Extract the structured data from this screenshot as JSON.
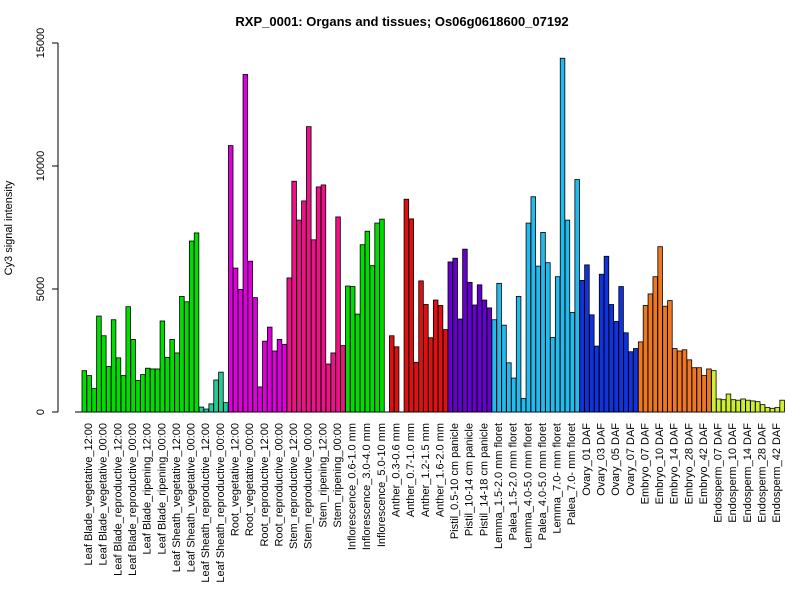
{
  "chart_data": {
    "type": "bar",
    "title": "RXP_0001: Organs and tissues; Os06g0618600_07192",
    "xlabel": "",
    "ylabel": "Cy3 signal intensity",
    "ylim": [
      0,
      15000
    ],
    "yticks": [
      0,
      5000,
      10000,
      15000
    ],
    "grid": false,
    "legend": "none",
    "groups": [
      {
        "label": "Leaf Blade_vegetative_12:00",
        "color": "#00dd00",
        "values": [
          1680,
          1480,
          950
        ]
      },
      {
        "label": "Leaf Blade_vegetative_00:00",
        "color": "#00dd00",
        "values": [
          3900,
          3100,
          1850
        ]
      },
      {
        "label": "Leaf Blade_reproductive_12:00",
        "color": "#00dd00",
        "values": [
          3750,
          2200,
          1480
        ]
      },
      {
        "label": "Leaf Blade_reproductive_00:00",
        "color": "#00dd00",
        "values": [
          4280,
          2950,
          1280
        ]
      },
      {
        "label": "Leaf Blade_ripening_12:00",
        "color": "#00dd00",
        "values": [
          1520,
          1780,
          1750
        ]
      },
      {
        "label": "Leaf Blade_ripening_00:00",
        "color": "#00dd00",
        "values": [
          1750,
          3700,
          2220
        ]
      },
      {
        "label": "Leaf Sheath_vegetative_12:00",
        "color": "#00dd00",
        "values": [
          2950,
          2400,
          4700
        ]
      },
      {
        "label": "Leaf Sheath_vegetative_00:00",
        "color": "#00dd00",
        "values": [
          4480,
          6950,
          7280
        ]
      },
      {
        "label": "Leaf Sheath_reproductive_12:00",
        "color": "#22cc99",
        "values": [
          200,
          120,
          330
        ]
      },
      {
        "label": "Leaf Sheath_reproductive_00:00",
        "color": "#22cc99",
        "values": [
          1300,
          1620,
          380
        ]
      },
      {
        "label": "Root_vegetative_12:00",
        "color": "#dd00dd",
        "values": [
          10830,
          5850,
          4980
        ]
      },
      {
        "label": "Root_vegetative_00:00",
        "color": "#dd00dd",
        "values": [
          13720,
          6130,
          4650
        ]
      },
      {
        "label": "Root_reproductive_12:00",
        "color": "#dd00dd",
        "values": [
          1020,
          2880,
          3450
        ]
      },
      {
        "label": "Root_reproductive_00:00",
        "color": "#dd00dd",
        "values": [
          2480,
          2950,
          2750
        ]
      },
      {
        "label": "Stem_reproductive_12:00",
        "color": "#ee1188",
        "values": [
          5450,
          9380,
          7800
        ]
      },
      {
        "label": "Stem_reproductive_00:00",
        "color": "#ee1188",
        "values": [
          8580,
          11600,
          7000
        ]
      },
      {
        "label": "Stem_ripening_12:00",
        "color": "#ee1188",
        "values": [
          9150,
          9230,
          1950
        ]
      },
      {
        "label": "Stem_ripening_00:00",
        "color": "#ee1188",
        "values": [
          2400,
          7930,
          2700
        ]
      },
      {
        "label": "Inflorescence_0.6-1.0 mm",
        "color": "#00dd00",
        "values": [
          5120,
          5100,
          3980
        ]
      },
      {
        "label": "Inflorescence_3.0-4.0 mm",
        "color": "#00dd00",
        "values": [
          6800,
          7350,
          5950
        ]
      },
      {
        "label": "Inflorescence_5.0-10 mm",
        "color": "#00dd00",
        "values": [
          7680,
          7840,
          0
        ]
      },
      {
        "label": "Anther_0.3-0.6 mm",
        "color": "#dd1111",
        "values": [
          3100,
          2650,
          0
        ]
      },
      {
        "label": "Anther_0.7-1.0 mm",
        "color": "#dd1111",
        "values": [
          8650,
          7850,
          2020
        ]
      },
      {
        "label": "Anther_1.2-1.5 mm",
        "color": "#dd1111",
        "values": [
          5330,
          4370,
          3020
        ]
      },
      {
        "label": "Anther_1.6-2.0 mm",
        "color": "#dd1111",
        "values": [
          4550,
          4330,
          3350
        ]
      },
      {
        "label": "Pistil_0.5-10 cm panicle",
        "color": "#6600cc",
        "values": [
          6100,
          6250,
          3780
        ]
      },
      {
        "label": "Pistil_10-14 cm panicle",
        "color": "#6600cc",
        "values": [
          6620,
          5270,
          4350
        ]
      },
      {
        "label": "Pistil_14-18 cm panicle",
        "color": "#6600cc",
        "values": [
          5170,
          4550,
          4230
        ]
      },
      {
        "label": "Lemma_1.5-2.0 mm floret",
        "color": "#22bbee",
        "values": [
          3750,
          5230,
          3530
        ]
      },
      {
        "label": "Palea_1.5-2.0 mm floret",
        "color": "#22bbee",
        "values": [
          2000,
          1380,
          4700
        ]
      },
      {
        "label": "Lemma_4.0-5.0 mm floret",
        "color": "#22bbee",
        "values": [
          550,
          7680,
          8750
        ]
      },
      {
        "label": "Palea_4.0-5.0 mm floret",
        "color": "#22bbee",
        "values": [
          5930,
          7300,
          6070
        ]
      },
      {
        "label": "Lemma_7.0- mm floret",
        "color": "#22bbee",
        "values": [
          3030,
          5500,
          14380
        ]
      },
      {
        "label": "Palea_7.0- mm floret",
        "color": "#22bbee",
        "values": [
          7800,
          4050,
          9450
        ]
      },
      {
        "label": "Ovary_01 DAF",
        "color": "#1133dd",
        "values": [
          5350,
          5980,
          3950
        ]
      },
      {
        "label": "Ovary_03 DAF",
        "color": "#1133dd",
        "values": [
          2680,
          5600,
          6330
        ]
      },
      {
        "label": "Ovary_05 DAF",
        "color": "#1133dd",
        "values": [
          4370,
          3680,
          5100
        ]
      },
      {
        "label": "Ovary_07 DAF",
        "color": "#1133dd",
        "values": [
          3220,
          2450,
          2580
        ]
      },
      {
        "label": "Embryo_07 DAF",
        "color": "#ee7722",
        "values": [
          2850,
          4330,
          4800
        ]
      },
      {
        "label": "Embryo_10 DAF",
        "color": "#ee7722",
        "values": [
          5500,
          6720,
          4300
        ]
      },
      {
        "label": "Embryo_14 DAF",
        "color": "#ee7722",
        "values": [
          4530,
          2580,
          2480
        ]
      },
      {
        "label": "Embryo_28 DAF",
        "color": "#ee7722",
        "values": [
          2530,
          2120,
          1800
        ]
      },
      {
        "label": "Embryo_42 DAF",
        "color": "#ee7722",
        "values": [
          1800,
          1480,
          1750
        ]
      },
      {
        "label": "Endosperm_07 DAF",
        "color": "#ccee33",
        "values": [
          1680,
          530,
          500
        ]
      },
      {
        "label": "Endosperm_10 DAF",
        "color": "#ccee33",
        "values": [
          730,
          500,
          480
        ]
      },
      {
        "label": "Endosperm_14 DAF",
        "color": "#ccee33",
        "values": [
          530,
          480,
          450
        ]
      },
      {
        "label": "Endosperm_28 DAF",
        "color": "#ccee33",
        "values": [
          420,
          300,
          180
        ]
      },
      {
        "label": "Endosperm_42 DAF",
        "color": "#ccee33",
        "values": [
          150,
          180,
          480
        ]
      }
    ]
  }
}
